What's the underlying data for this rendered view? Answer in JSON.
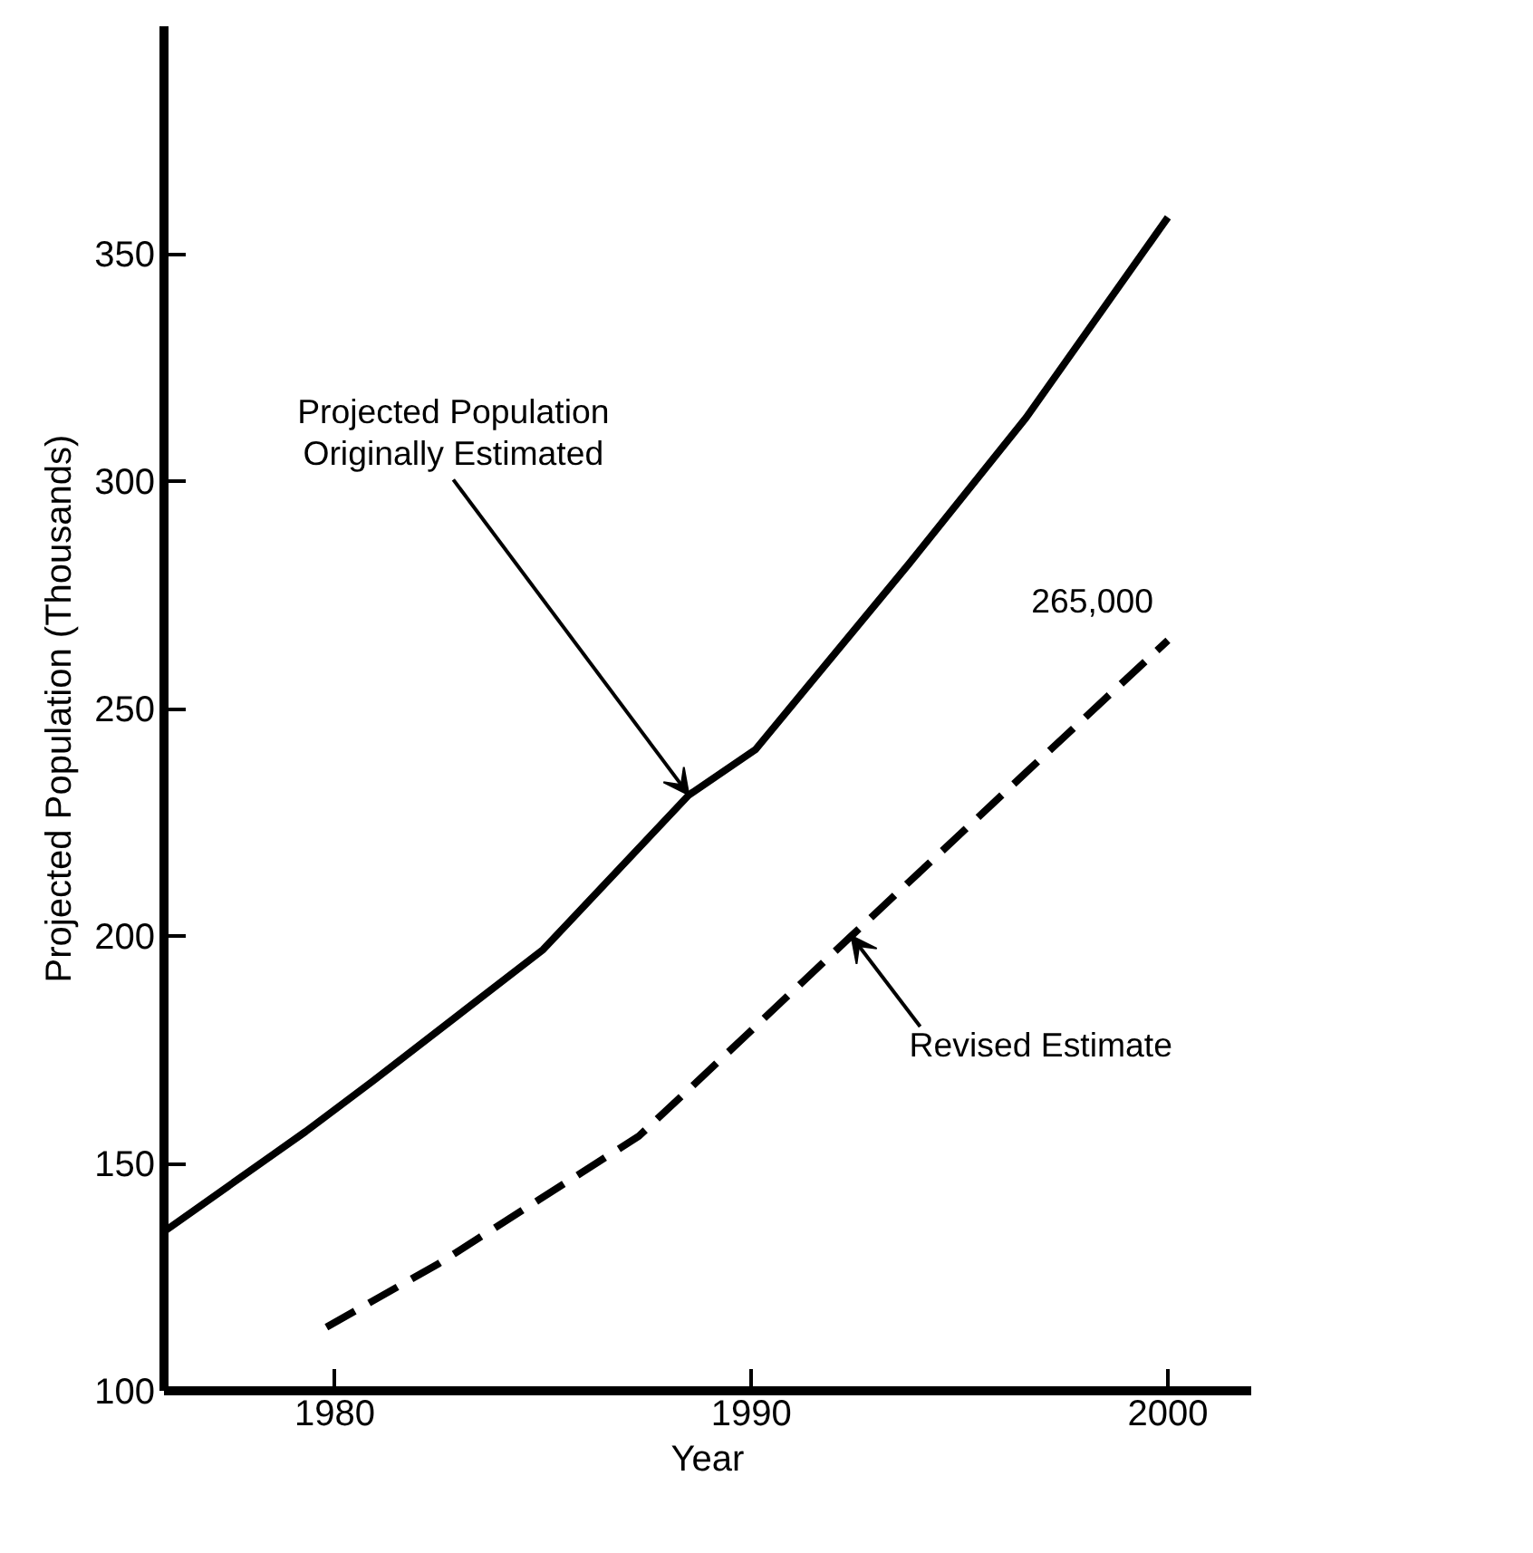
{
  "chart_data": {
    "type": "line",
    "xlabel": "Year",
    "ylabel": "Projected Population (Thousands)",
    "xlim": [
      1975.9,
      2002
    ],
    "ylim": [
      100,
      400
    ],
    "xticks": [
      1980,
      1990,
      2000
    ],
    "yticks": [
      100,
      150,
      200,
      250,
      300,
      350
    ],
    "grid": false,
    "marker": "none",
    "series": [
      {
        "color": "#000000",
        "line_style": "solid",
        "x": [
          1975.9,
          1979.3,
          1980.9,
          1985.0,
          1988.5,
          1990.1,
          1993.8,
          1996.6,
          2000.0
        ],
        "values": [
          135,
          157,
          168,
          197,
          231,
          241,
          282,
          314,
          358
        ]
      },
      {
        "color": "#000000",
        "line_style": "dashed",
        "x": [
          1979.8,
          1982.5,
          1984.9,
          1987.3,
          1988.7,
          1992.4,
          1996.6,
          2000.0
        ],
        "values": [
          114,
          128,
          142,
          156,
          168,
          200,
          236,
          265
        ]
      }
    ],
    "annotations": [
      {
        "text": "Projected Population\nOriginally Estimated",
        "x": 1988.5,
        "y": 231
      },
      {
        "text": "Revised Estimate",
        "x": 1992.4,
        "y": 200
      },
      {
        "text": "265,000",
        "x": 2000.0,
        "y": 265
      }
    ]
  }
}
